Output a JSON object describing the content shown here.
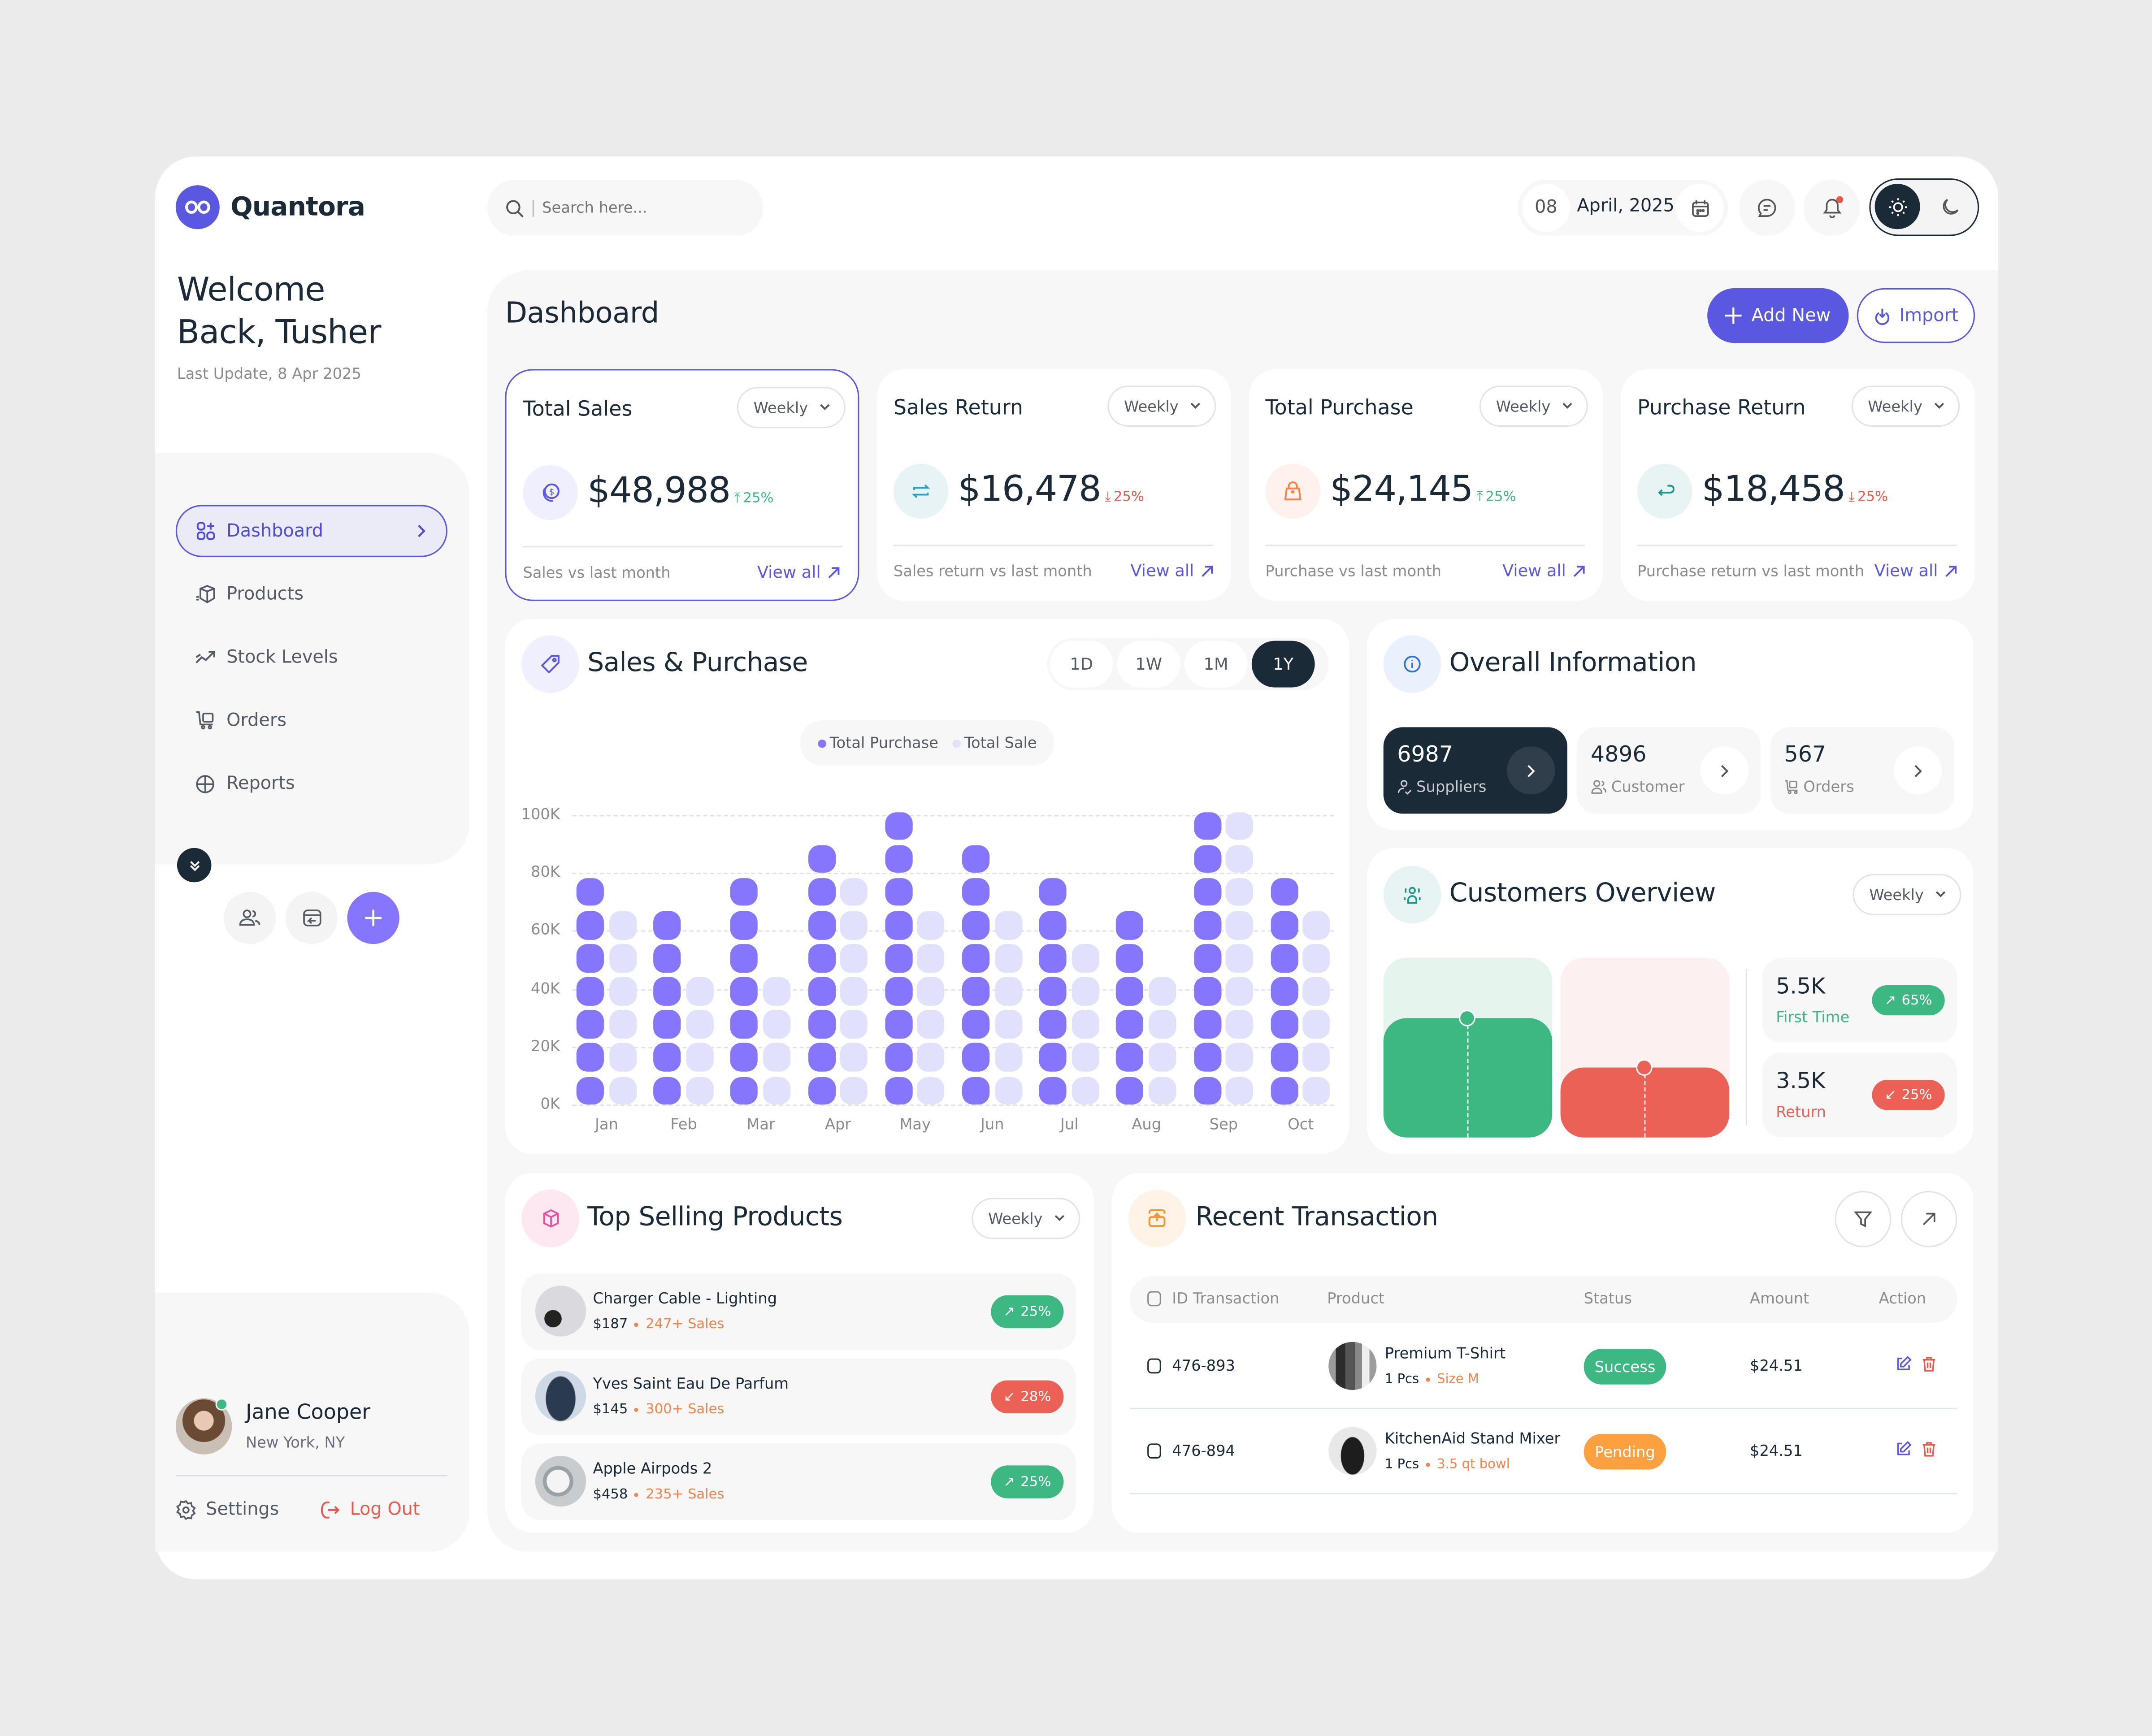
{
  "app": {
    "name": "Quantora",
    "brand_color": "#5a57e1"
  },
  "sidebar": {
    "welcome": "Welcome Back, Tusher",
    "welcome_line1": "Welcome",
    "welcome_line2": "Back, Tusher",
    "last_update": "Last Update, 8 Apr 2025",
    "items": [
      {
        "label": "Dashboard",
        "icon": "grid-plus-icon",
        "active": true
      },
      {
        "label": "Products",
        "icon": "box-icon"
      },
      {
        "label": "Stock Levels",
        "icon": "trend-up-icon"
      },
      {
        "label": "Orders",
        "icon": "cart-icon"
      },
      {
        "label": "Reports",
        "icon": "pie-chart-icon"
      }
    ],
    "quick_actions": [
      "users-icon",
      "box-return-icon",
      "plus-icon"
    ],
    "user": {
      "name": "Jane Cooper",
      "location": "New York, NY",
      "online": true
    },
    "settings_label": "Settings",
    "logout_label": "Log Out"
  },
  "topbar": {
    "search_placeholder": "Search here...",
    "date_day": "08",
    "date_month": "April, 2025",
    "theme": "light"
  },
  "page": {
    "title": "Dashboard",
    "add_new_label": "Add New",
    "import_label": "Import"
  },
  "stats": [
    {
      "title": "Total Sales",
      "period": "Weekly",
      "value": "$48,988",
      "trend": "25%",
      "direction": "up",
      "footer": "Sales vs last month",
      "link": "View all",
      "icon": "dollar-coin-icon",
      "icon_bg": "#efeffd",
      "icon_color": "#5a57e1"
    },
    {
      "title": "Sales Return",
      "period": "Weekly",
      "value": "$16,478",
      "trend": "25%",
      "direction": "down",
      "footer": "Sales return vs last month",
      "link": "View all",
      "icon": "repeat-icon",
      "icon_bg": "#e8f3f6",
      "icon_color": "#1fa6c7"
    },
    {
      "title": "Total Purchase",
      "period": "Weekly",
      "value": "$24,145",
      "trend": "25%",
      "direction": "up",
      "footer": "Purchase vs last month",
      "link": "View all",
      "icon": "bag-icon",
      "icon_bg": "#fff1ec",
      "icon_color": "#f3844c"
    },
    {
      "title": "Purchase Return",
      "period": "Weekly",
      "value": "$18,458",
      "trend": "25%",
      "direction": "down",
      "footer": "Purchase return vs last month",
      "link": "View all",
      "icon": "return-arrow-icon",
      "icon_bg": "#e7f4f3",
      "icon_color": "#1a9a86"
    }
  ],
  "sales_purchase": {
    "title": "Sales & Purchase",
    "ranges": [
      "1D",
      "1W",
      "1M",
      "1Y"
    ],
    "active_range": "1Y",
    "legend": [
      "Total Purchase",
      "Total Sale"
    ]
  },
  "chart_data": {
    "type": "bar",
    "title": "Sales & Purchase",
    "categories": [
      "Jan",
      "Feb",
      "Mar",
      "Apr",
      "May",
      "Jun",
      "Jul",
      "Aug",
      "Sep",
      "Oct"
    ],
    "series": [
      {
        "name": "Total Purchase",
        "color": "#8576fd",
        "values": [
          78,
          67,
          78,
          89,
          100,
          89,
          78,
          67,
          100,
          78
        ],
        "blocks": [
          7,
          6,
          7,
          8,
          9,
          8,
          7,
          6,
          9,
          7
        ]
      },
      {
        "name": "Total Sale",
        "color": "#e1e1fc",
        "values": [
          67,
          44,
          44,
          78,
          67,
          67,
          56,
          44,
          100,
          67
        ],
        "blocks": [
          6,
          4,
          4,
          7,
          6,
          6,
          5,
          4,
          9,
          6
        ]
      }
    ],
    "yticks": [
      "100K",
      "80K",
      "60K",
      "40K",
      "20K",
      "0K"
    ],
    "ylim": [
      0,
      100
    ],
    "ylabel": "",
    "xlabel": "",
    "grid": "dashed horizontal",
    "legend_position": "top-center",
    "unit": "K"
  },
  "overall_info": {
    "title": "Overall Information",
    "tiles": [
      {
        "value": "6987",
        "label": "Suppliers",
        "icon": "user-check-icon",
        "active": true
      },
      {
        "value": "4896",
        "label": "Customer",
        "icon": "users-icon"
      },
      {
        "value": "567",
        "label": "Orders",
        "icon": "cart-icon"
      }
    ]
  },
  "customers_overview": {
    "title": "Customers Overview",
    "period": "Weekly",
    "first_time": {
      "value": "5.5K",
      "label": "First Time",
      "trend": "65%",
      "direction": "up",
      "color": "#3db883"
    },
    "return": {
      "value": "3.5K",
      "label": "Return",
      "trend": "25%",
      "direction": "down",
      "color": "#ec6155"
    }
  },
  "top_products": {
    "title": "Top Selling Products",
    "period": "Weekly",
    "items": [
      {
        "name": "Charger Cable - Lighting",
        "price": "$187",
        "sales": "247+ Sales",
        "trend": "25%",
        "direction": "up"
      },
      {
        "name": "Yves Saint Eau De Parfum",
        "price": "$145",
        "sales": "300+ Sales",
        "trend": "28%",
        "direction": "down"
      },
      {
        "name": "Apple Airpods 2",
        "price": "$458",
        "sales": "235+ Sales",
        "trend": "25%",
        "direction": "up"
      }
    ]
  },
  "transactions": {
    "title": "Recent Transaction",
    "columns": [
      "ID Transaction",
      "Product",
      "Status",
      "Amount",
      "Action"
    ],
    "rows": [
      {
        "id": "476-893",
        "product": "Premium T-Shirt",
        "qty": "1 Pcs",
        "variant": "Size M",
        "status": "Success",
        "status_color": "#3db883",
        "amount": "$24.51"
      },
      {
        "id": "476-894",
        "product": "KitchenAid Stand Mixer",
        "qty": "1 Pcs",
        "variant": "3.5 qt bowl",
        "status": "Pending",
        "status_color": "#fda040",
        "amount": "$24.51"
      }
    ]
  }
}
